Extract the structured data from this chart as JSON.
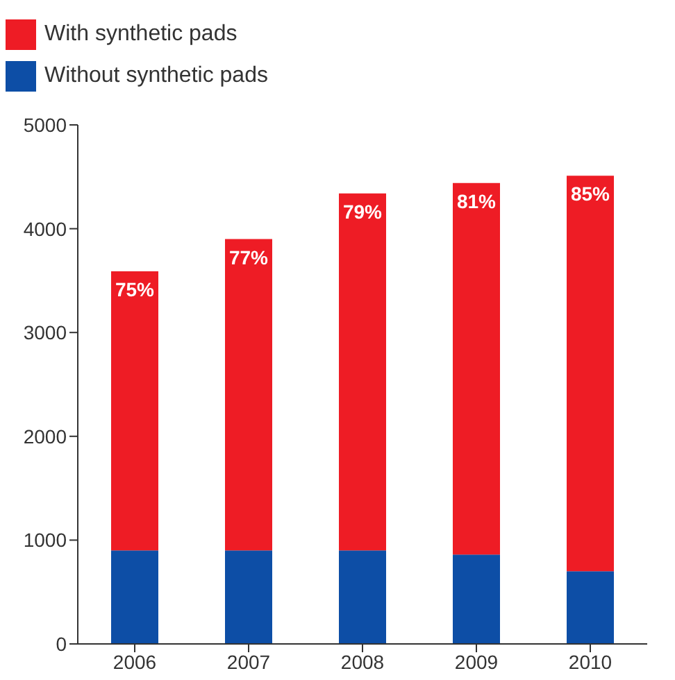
{
  "chart_data": {
    "type": "bar",
    "stacked": true,
    "categories": [
      "2006",
      "2007",
      "2008",
      "2009",
      "2010"
    ],
    "series": [
      {
        "name": "Without synthetic pads",
        "color": "#0d4ea6",
        "values": [
          900,
          900,
          900,
          860,
          700
        ]
      },
      {
        "name": "With synthetic pads",
        "color": "#ee1c25",
        "values": [
          2690,
          3000,
          3440,
          3580,
          3810
        ]
      }
    ],
    "annotations": [
      {
        "text": "75%",
        "x": "2006",
        "y": 3590
      },
      {
        "text": "77%",
        "x": "2007",
        "y": 3900
      },
      {
        "text": "79%",
        "x": "2008",
        "y": 4340
      },
      {
        "text": "81%",
        "x": "2009",
        "y": 4440
      },
      {
        "text": "85%",
        "x": "2010",
        "y": 4510
      }
    ],
    "ylim": [
      0,
      5000
    ],
    "yticks": [
      0,
      1000,
      2000,
      3000,
      4000,
      5000
    ],
    "grid": false,
    "legend": "top left"
  }
}
